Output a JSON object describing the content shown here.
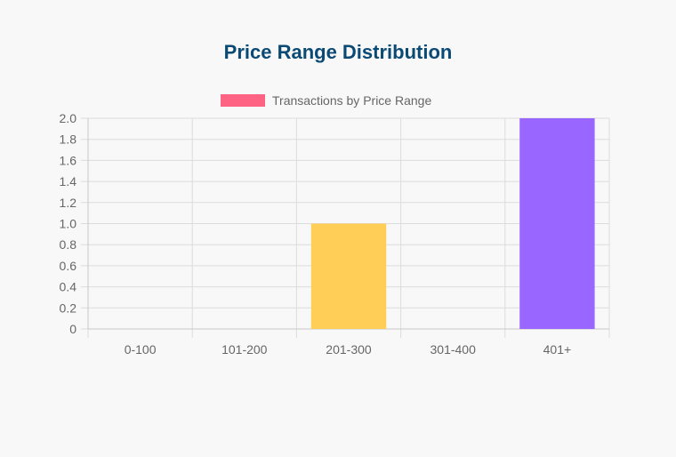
{
  "title": "Price Range Distribution",
  "chart_data": {
    "type": "bar",
    "categories": [
      "0-100",
      "101-200",
      "201-300",
      "301-400",
      "401+"
    ],
    "series": [
      {
        "name": "Transactions by Price Range",
        "values": [
          0,
          0,
          1,
          0,
          2
        ]
      }
    ],
    "bar_colors": [
      "#ff6384",
      "#36a2eb",
      "#ffce56",
      "#4bc0c0",
      "#9966ff"
    ],
    "legend_color": "#ff6384",
    "ylim": [
      0,
      2
    ],
    "y_ticks": [
      "0",
      "0.2",
      "0.4",
      "0.6",
      "0.8",
      "1.0",
      "1.2",
      "1.4",
      "1.6",
      "1.8",
      "2.0"
    ],
    "legend_position": "top",
    "grid": true
  }
}
